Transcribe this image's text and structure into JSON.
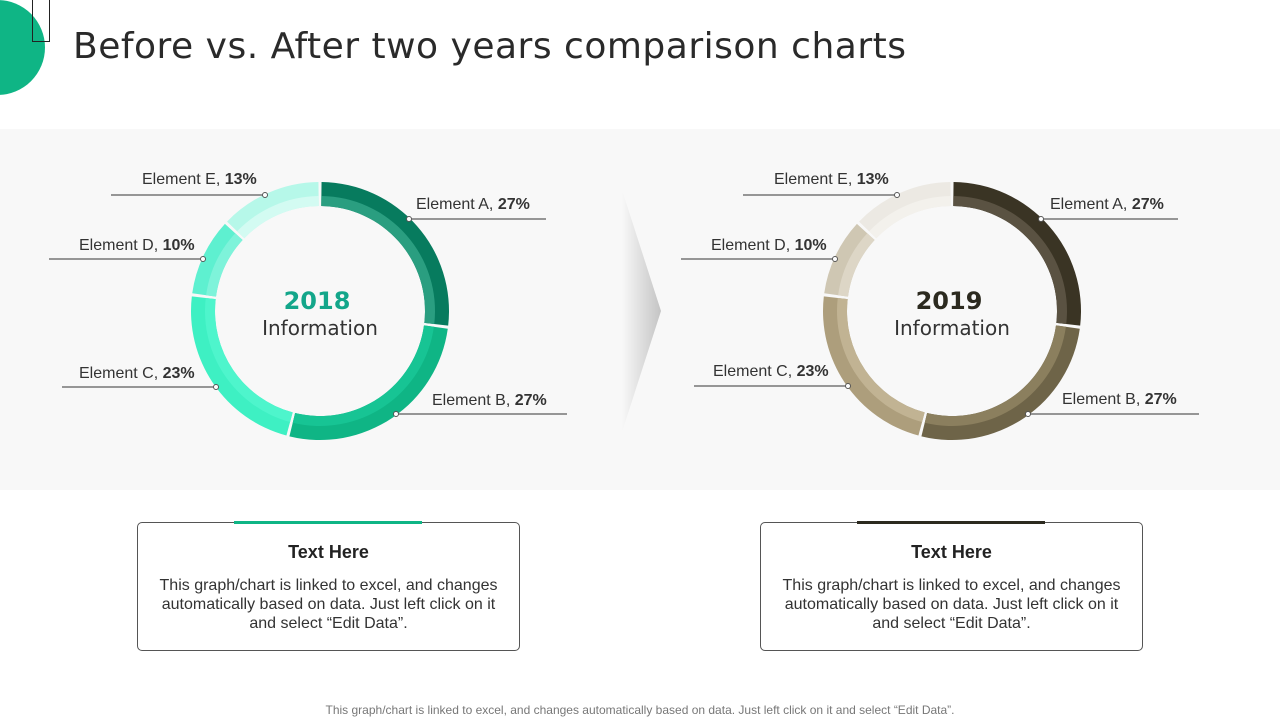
{
  "page": {
    "title": "Before vs. After two years comparison charts",
    "footer": "This graph/chart is linked to excel, and changes automatically based on data. Just left click on it and select “Edit Data”."
  },
  "colors": {
    "accent": "#0fb585",
    "dark": "#2c2a1f"
  },
  "chart_data": [
    {
      "type": "pie",
      "variant": "donut",
      "center_year": "2018",
      "center_label": "Information",
      "year_color": "#13a68a",
      "categories": [
        "Element A",
        "Element B",
        "Element C",
        "Element D",
        "Element E"
      ],
      "values": [
        27,
        27,
        23,
        10,
        13
      ],
      "value_labels": [
        "27%",
        "27%",
        "23%",
        "10%",
        "13%"
      ],
      "colors": [
        "#077b5e",
        "#0fb585",
        "#3ef0c3",
        "#5ef0d0",
        "#b6f8e9"
      ],
      "inner_colors": [
        "#2a9e80",
        "#17c494",
        "#4ef5cc",
        "#7ef3da",
        "#d3fbf2"
      ]
    },
    {
      "type": "pie",
      "variant": "donut",
      "center_year": "2019",
      "center_label": "Information",
      "year_color": "#2c2a1f",
      "categories": [
        "Element A",
        "Element B",
        "Element C",
        "Element D",
        "Element E"
      ],
      "values": [
        27,
        27,
        23,
        10,
        13
      ],
      "value_labels": [
        "27%",
        "27%",
        "23%",
        "10%",
        "13%"
      ],
      "colors": [
        "#3a3424",
        "#6e6448",
        "#ad9e7c",
        "#cfc7b3",
        "#ece9e3"
      ],
      "inner_colors": [
        "#5a5242",
        "#8b7f5e",
        "#c1b393",
        "#ddd6c6",
        "#f3f1ec"
      ]
    }
  ],
  "boxes": [
    {
      "title": "Text Here",
      "text": "This graph/chart is linked to excel, and changes automatically based on data. Just left click on it and select “Edit Data”.",
      "tab_color": "#0fb585"
    },
    {
      "title": "Text Here",
      "text": "This graph/chart is linked to excel, and changes automatically based on data. Just left click on it and select “Edit Data”.",
      "tab_color": "#2c2a1f"
    }
  ]
}
